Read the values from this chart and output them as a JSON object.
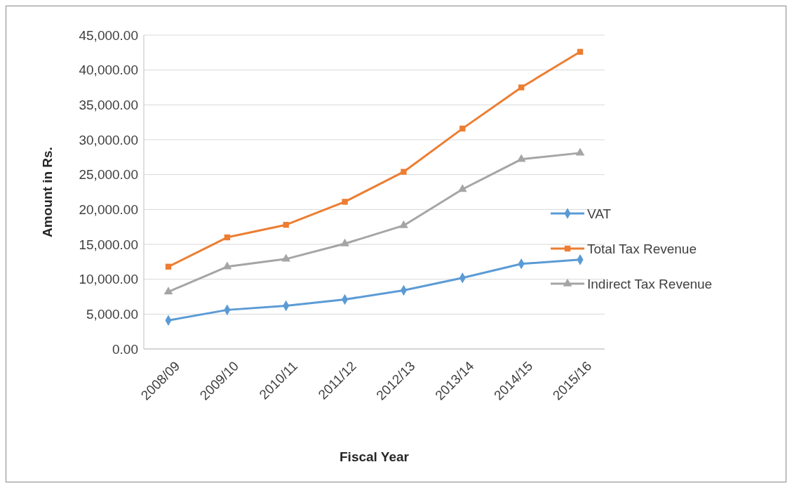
{
  "chart_data": {
    "type": "line",
    "xlabel": "Fiscal Year",
    "ylabel": "Amount in Rs.",
    "categories": [
      "2008/09",
      "2009/10",
      "2010/11",
      "2011/12",
      "2012/13",
      "2013/14",
      "2014/15",
      "2015/16"
    ],
    "series": [
      {
        "name": "VAT",
        "color": "#5b9bd5",
        "marker": "diamond",
        "values": [
          4100,
          5600,
          6200,
          7100,
          8400,
          10200,
          12200,
          12800
        ]
      },
      {
        "name": "Total Tax Revenue",
        "color": "#ed7d31",
        "marker": "square",
        "values": [
          11800,
          16000,
          17800,
          21100,
          25400,
          31600,
          37500,
          42600
        ]
      },
      {
        "name": "Indirect Tax Revenue",
        "color": "#a5a5a5",
        "marker": "triangle",
        "values": [
          8200,
          11800,
          12900,
          15100,
          17700,
          22900,
          27200,
          28100
        ]
      }
    ],
    "ylim": [
      0,
      45000
    ],
    "yticks": [
      {
        "value": 0,
        "label": "0.00"
      },
      {
        "value": 5000,
        "label": "5,000.00"
      },
      {
        "value": 10000,
        "label": "10,000.00"
      },
      {
        "value": 15000,
        "label": "15,000.00"
      },
      {
        "value": 20000,
        "label": "20,000.00"
      },
      {
        "value": 25000,
        "label": "25,000.00"
      },
      {
        "value": 30000,
        "label": "30,000.00"
      },
      {
        "value": 35000,
        "label": "35,000.00"
      },
      {
        "value": 40000,
        "label": "40,000.00"
      },
      {
        "value": 45000,
        "label": "45,000.00"
      }
    ],
    "grid": "y",
    "legend": "right",
    "line_style": "solid"
  }
}
